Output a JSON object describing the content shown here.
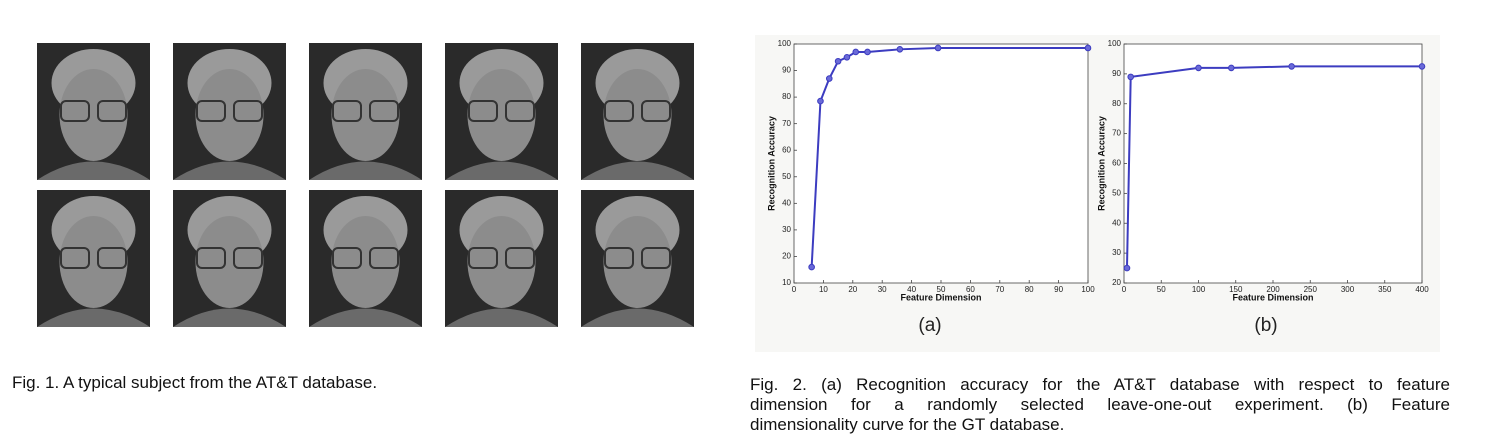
{
  "figure1": {
    "caption": "Fig. 1. A typical subject from the AT&T database."
  },
  "figure2": {
    "caption_lines": [
      "Fig. 2. (a) Recognition accuracy for the AT&T database with respect to feature",
      "dimension for a randomly selected leave-one-out experiment. (b) Feature",
      "dimensionality curve for the GT database."
    ]
  },
  "chart_data": [
    {
      "type": "line",
      "panel_label": "(a)",
      "xlabel": "Feature Dimension",
      "ylabel": "Recognition Accuracy",
      "xlim": [
        0,
        100
      ],
      "xticks": [
        0,
        10,
        20,
        30,
        40,
        50,
        60,
        70,
        80,
        90,
        100
      ],
      "ylim": [
        10,
        100
      ],
      "yticks": [
        10,
        20,
        30,
        40,
        50,
        60,
        70,
        80,
        90,
        100
      ],
      "x": [
        6,
        9,
        12,
        15,
        18,
        21,
        25,
        36,
        49,
        100
      ],
      "series": [
        {
          "color": "#3c3cc0",
          "values": [
            16,
            78.5,
            87,
            93.5,
            95,
            97,
            97,
            98,
            98.5,
            98.5
          ]
        }
      ]
    },
    {
      "type": "line",
      "panel_label": "(b)",
      "xlabel": "Feature Dimension",
      "ylabel": "Recognition Accuracy",
      "xlim": [
        0,
        400
      ],
      "xticks": [
        0,
        50,
        100,
        150,
        200,
        250,
        300,
        350,
        400
      ],
      "ylim": [
        20,
        100
      ],
      "yticks": [
        20,
        30,
        40,
        50,
        60,
        70,
        80,
        90,
        100
      ],
      "x": [
        4,
        9,
        100,
        144,
        225,
        400
      ],
      "series": [
        {
          "color": "#3c3cc0",
          "values": [
            25,
            89,
            92,
            92,
            92.5,
            92.5
          ]
        }
      ]
    }
  ]
}
